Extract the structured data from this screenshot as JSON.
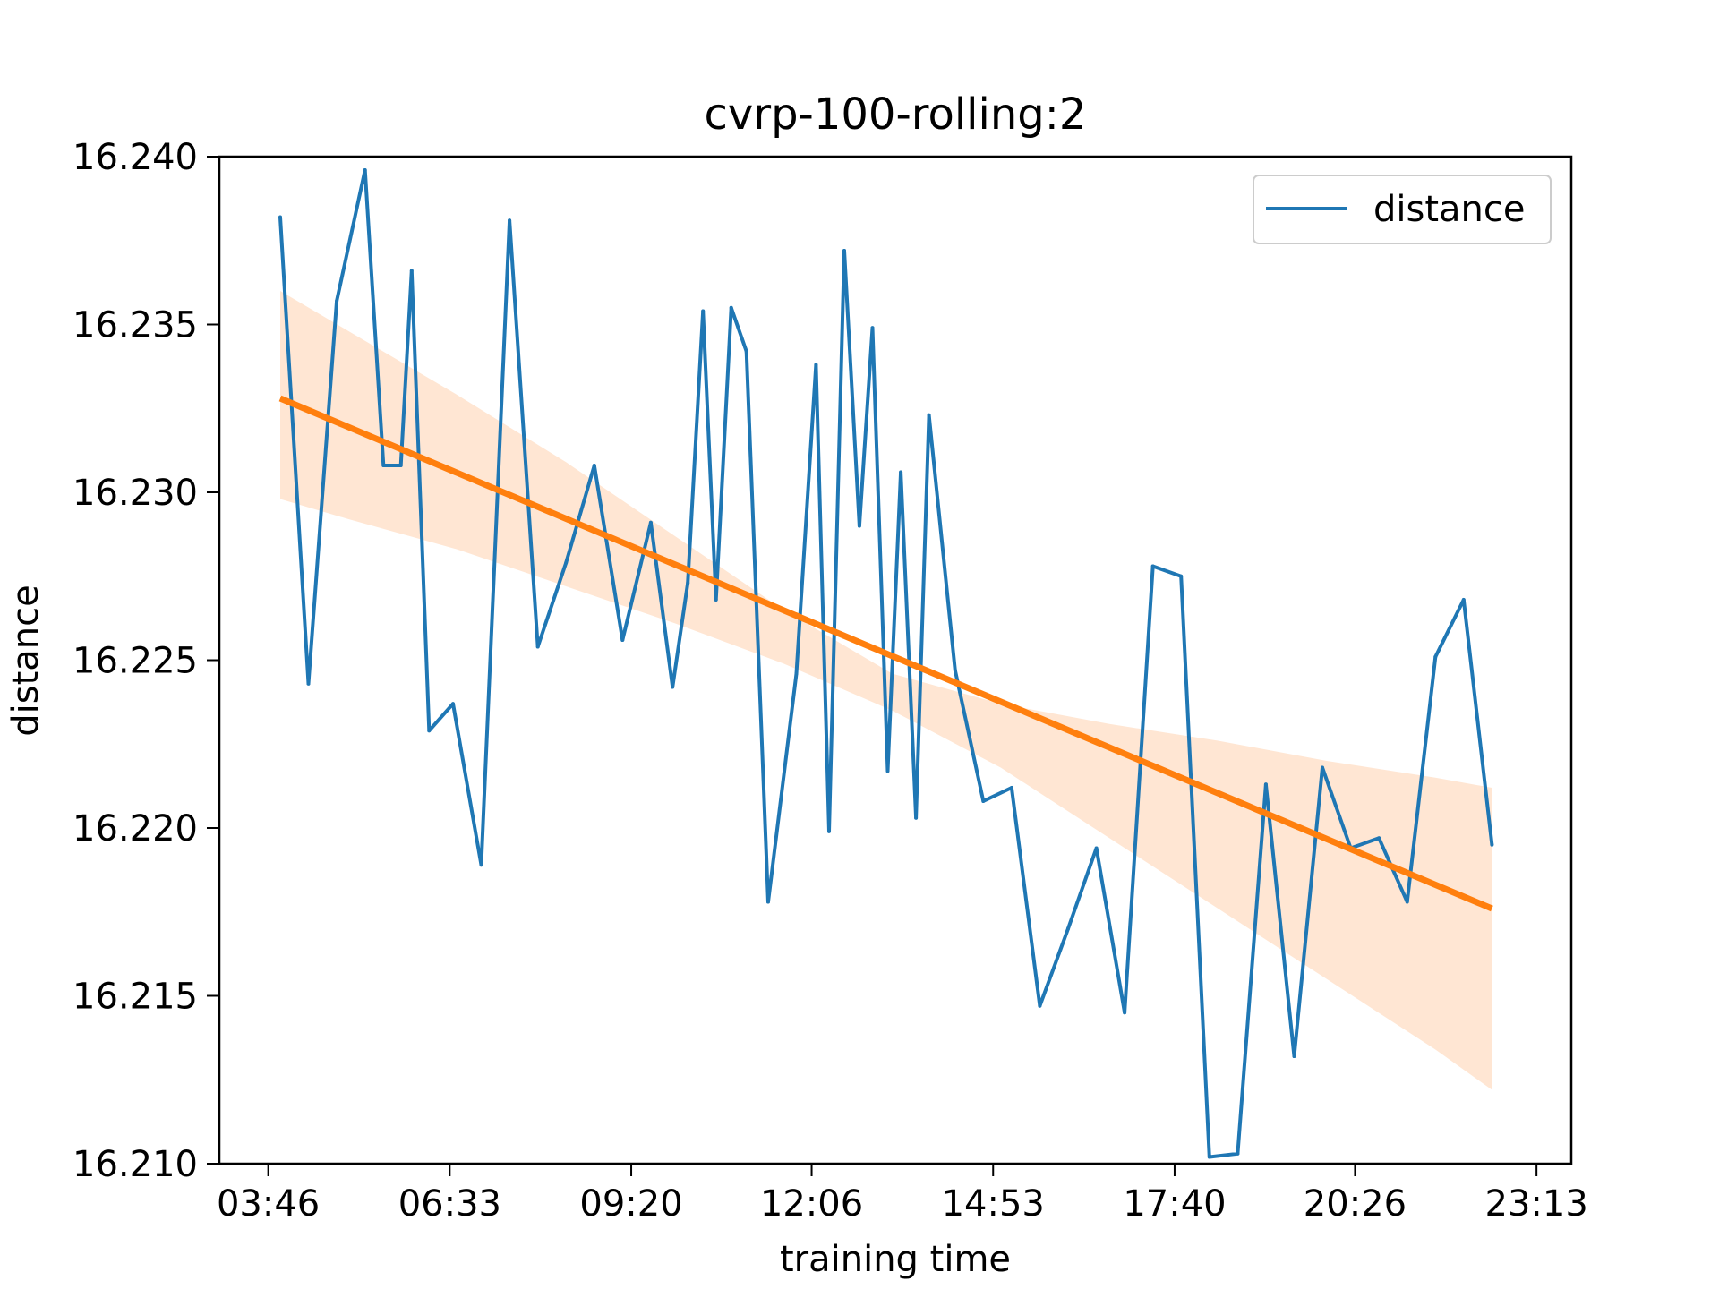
{
  "chart_data": {
    "type": "line",
    "title": "cvrp-100-rolling:2",
    "xlabel": "training time",
    "ylabel": "distance",
    "x_ticks": [
      "03:46",
      "06:33",
      "09:20",
      "12:06",
      "14:53",
      "17:40",
      "20:26",
      "23:13"
    ],
    "x_tick_minutes": [
      226,
      393,
      560,
      726,
      893,
      1060,
      1226,
      1393
    ],
    "xlim_minutes": [
      181,
      1425
    ],
    "y_ticks": [
      "16.210",
      "16.215",
      "16.220",
      "16.225",
      "16.230",
      "16.235",
      "16.240"
    ],
    "ylim": [
      16.21,
      16.24
    ],
    "grid": false,
    "legend_position": "top-right",
    "colors": {
      "series": "#1f77b4",
      "trend": "#ff7f0e",
      "band": "#ffe6d3"
    },
    "series": [
      {
        "name": "distance",
        "x_minutes": [
          237,
          263,
          289,
          315,
          332,
          348,
          358,
          374,
          396,
          422,
          448,
          474,
          500,
          526,
          552,
          578,
          598,
          612,
          626,
          638,
          652,
          666,
          686,
          712,
          730,
          742,
          756,
          770,
          782,
          796,
          808,
          822,
          834,
          858,
          884,
          910,
          936,
          962,
          988,
          1014,
          1040,
          1066,
          1092,
          1118,
          1144,
          1170,
          1196,
          1222,
          1248,
          1274,
          1300,
          1326,
          1352
        ],
        "y": [
          16.2382,
          16.2243,
          16.2357,
          16.2396,
          16.2308,
          16.2308,
          16.2366,
          16.2229,
          16.2237,
          16.2189,
          16.2381,
          16.2254,
          16.2279,
          16.2308,
          16.2256,
          16.2291,
          16.2242,
          16.2273,
          16.2354,
          16.2268,
          16.2355,
          16.2342,
          16.2178,
          16.2246,
          16.2338,
          16.2199,
          16.2372,
          16.229,
          16.2349,
          16.2217,
          16.2306,
          16.2203,
          16.2323,
          16.2247,
          16.2208,
          16.2212,
          16.2147,
          16.217,
          16.2194,
          16.2145,
          16.2278,
          16.2275,
          16.2102,
          16.2103,
          16.2213,
          16.2132,
          16.2218,
          16.2194,
          16.2197,
          16.2178,
          16.2251,
          16.2268,
          16.2195
        ]
      }
    ],
    "trend": {
      "x_minutes": [
        237,
        1352
      ],
      "y": [
        16.2328,
        16.2176
      ]
    },
    "confidence_band": {
      "x_minutes": [
        237,
        300,
        400,
        500,
        600,
        700,
        800,
        900,
        1000,
        1100,
        1200,
        1300,
        1352
      ],
      "upper": [
        16.236,
        16.2348,
        16.2329,
        16.2309,
        16.2287,
        16.2265,
        16.2246,
        16.2237,
        16.2231,
        16.2226,
        16.222,
        16.2215,
        16.2212
      ],
      "lower": [
        16.2298,
        16.2292,
        16.2283,
        16.2272,
        16.2261,
        16.2249,
        16.2235,
        16.2218,
        16.2197,
        16.2176,
        16.2155,
        16.2134,
        16.2122
      ]
    }
  }
}
